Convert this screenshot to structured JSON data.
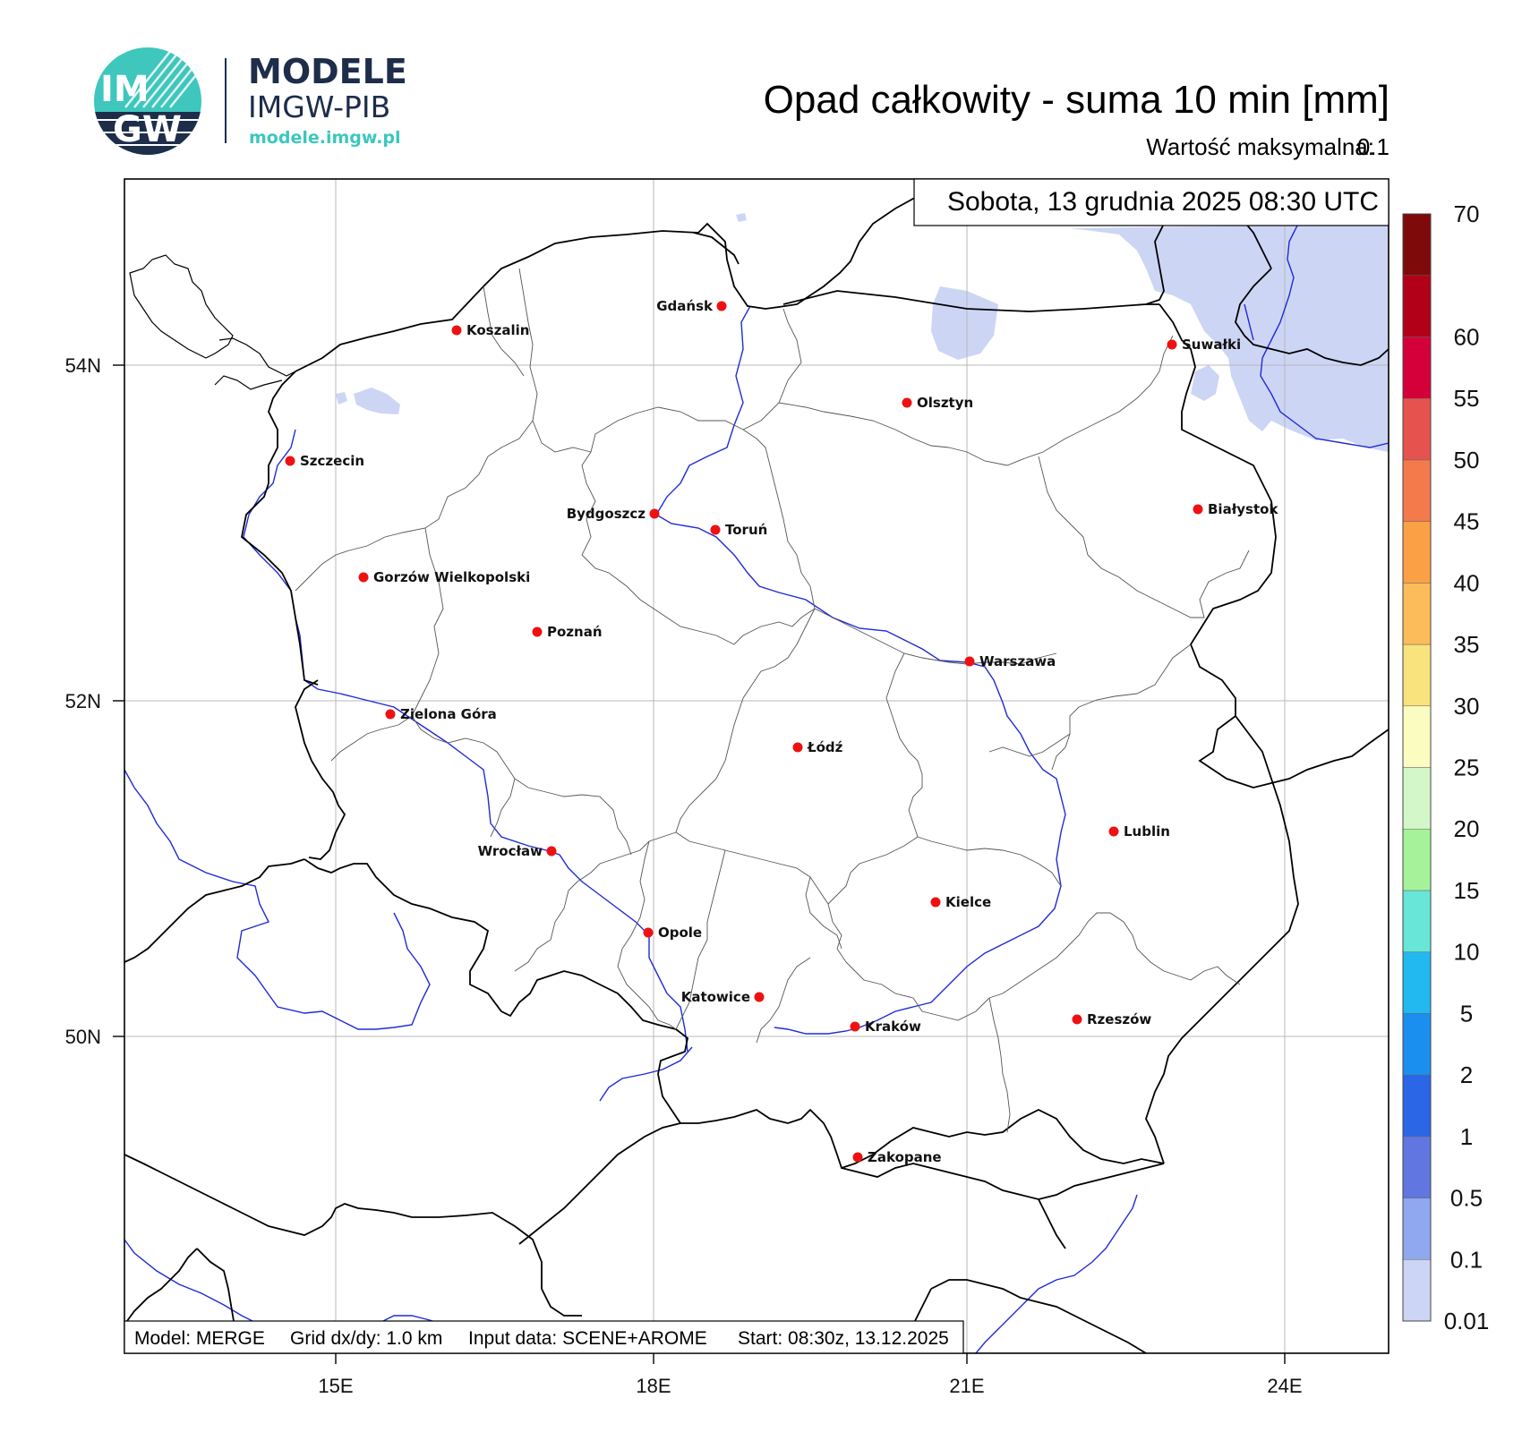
{
  "logo": {
    "line1": "MODELE",
    "line2": "IMGW-PIB",
    "url": "modele.imgw.pl",
    "badge_top": "IM",
    "badge_bottom": "GW"
  },
  "header": {
    "title": "Opad całkowity - suma 10 min [mm]",
    "max_label": "Wartość maksymalna:",
    "max_value": "0.1"
  },
  "map": {
    "date": "Sobota, 13 grudnia 2025 08:30 UTC",
    "footer": {
      "model": "Model: MERGE",
      "grid": "Grid dx/dy: 1.0 km",
      "input": "Input data: SCENE+AROME",
      "start": "Start: 08:30z, 13.12.2025"
    },
    "lat_ticks": [
      "54N",
      "52N",
      "50N"
    ],
    "lon_ticks": [
      "15E",
      "18E",
      "21E",
      "24E"
    ],
    "cities": [
      {
        "name": "Gdańsk",
        "label_side": "left"
      },
      {
        "name": "Koszalin",
        "label_side": "right"
      },
      {
        "name": "Suwałki",
        "label_side": "right"
      },
      {
        "name": "Olsztyn",
        "label_side": "right"
      },
      {
        "name": "Szczecin",
        "label_side": "right"
      },
      {
        "name": "Bydgoszcz",
        "label_side": "left"
      },
      {
        "name": "Toruń",
        "label_side": "right"
      },
      {
        "name": "Białystok",
        "label_side": "right"
      },
      {
        "name": "Gorzów Wielkopolski",
        "label_side": "right"
      },
      {
        "name": "Poznań",
        "label_side": "right"
      },
      {
        "name": "Warszawa",
        "label_side": "right"
      },
      {
        "name": "Zielona Góra",
        "label_side": "right"
      },
      {
        "name": "Łódź",
        "label_side": "right"
      },
      {
        "name": "Lublin",
        "label_side": "right"
      },
      {
        "name": "Wrocław",
        "label_side": "left"
      },
      {
        "name": "Kielce",
        "label_side": "right"
      },
      {
        "name": "Opole",
        "label_side": "right"
      },
      {
        "name": "Katowice",
        "label_side": "left"
      },
      {
        "name": "Kraków",
        "label_side": "right"
      },
      {
        "name": "Rzeszów",
        "label_side": "right"
      },
      {
        "name": "Zakopane",
        "label_side": "right"
      }
    ],
    "colors": {
      "precip_light": "#cdd5f5",
      "river": "#1f2bd6",
      "city_dot": "#ee1111"
    }
  },
  "colorbar": {
    "labels": [
      "0.01",
      "0.1",
      "0.5",
      "1",
      "2",
      "5",
      "10",
      "15",
      "20",
      "25",
      "30",
      "35",
      "40",
      "45",
      "50",
      "55",
      "60",
      "70"
    ],
    "colors": [
      "#cdd5f5",
      "#8fa8ef",
      "#6176e0",
      "#2a66e6",
      "#1a8ff0",
      "#21b9f0",
      "#68e6d8",
      "#a6f29a",
      "#d3f7c8",
      "#fbfcc0",
      "#f9e37c",
      "#fcbc5a",
      "#fca045",
      "#f47a4c",
      "#e6534e",
      "#d5003a",
      "#b10018",
      "#7f0a0a"
    ]
  }
}
